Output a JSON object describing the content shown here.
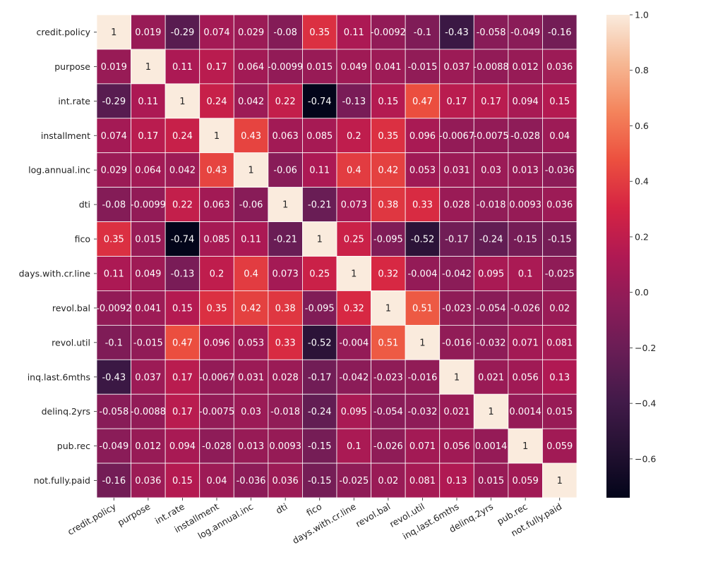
{
  "chart_data": {
    "type": "heatmap",
    "title": "",
    "xlabel": "",
    "ylabel": "",
    "labels": [
      "credit.policy",
      "purpose",
      "int.rate",
      "installment",
      "log.annual.inc",
      "dti",
      "fico",
      "days.with.cr.line",
      "revol.bal",
      "revol.util",
      "inq.last.6mths",
      "delinq.2yrs",
      "pub.rec",
      "not.fully.paid"
    ],
    "values": [
      [
        "1",
        "0.019",
        "-0.29",
        "0.074",
        "0.029",
        "-0.08",
        "0.35",
        "0.11",
        "-0.0092",
        "-0.1",
        "-0.43",
        "-0.058",
        "-0.049",
        "-0.16"
      ],
      [
        "0.019",
        "1",
        "0.11",
        "0.17",
        "0.064",
        "-0.0099",
        "0.015",
        "0.049",
        "0.041",
        "-0.015",
        "0.037",
        "-0.0088",
        "0.012",
        "0.036"
      ],
      [
        "-0.29",
        "0.11",
        "1",
        "0.24",
        "0.042",
        "0.22",
        "-0.74",
        "-0.13",
        "0.15",
        "0.47",
        "0.17",
        "0.17",
        "0.094",
        "0.15"
      ],
      [
        "0.074",
        "0.17",
        "0.24",
        "1",
        "0.43",
        "0.063",
        "0.085",
        "0.2",
        "0.35",
        "0.096",
        "-0.0067",
        "-0.0075",
        "-0.028",
        "0.04"
      ],
      [
        "0.029",
        "0.064",
        "0.042",
        "0.43",
        "1",
        "-0.06",
        "0.11",
        "0.4",
        "0.42",
        "0.053",
        "0.031",
        "0.03",
        "0.013",
        "-0.036"
      ],
      [
        "-0.08",
        "-0.0099",
        "0.22",
        "0.063",
        "-0.06",
        "1",
        "-0.21",
        "0.073",
        "0.38",
        "0.33",
        "0.028",
        "-0.018",
        "0.0093",
        "0.036"
      ],
      [
        "0.35",
        "0.015",
        "-0.74",
        "0.085",
        "0.11",
        "-0.21",
        "1",
        "0.25",
        "-0.095",
        "-0.52",
        "-0.17",
        "-0.24",
        "-0.15",
        "-0.15"
      ],
      [
        "0.11",
        "0.049",
        "-0.13",
        "0.2",
        "0.4",
        "0.073",
        "0.25",
        "1",
        "0.32",
        "-0.004",
        "-0.042",
        "0.095",
        "0.1",
        "-0.025"
      ],
      [
        "-0.0092",
        "0.041",
        "0.15",
        "0.35",
        "0.42",
        "0.38",
        "-0.095",
        "0.32",
        "1",
        "0.51",
        "-0.023",
        "-0.054",
        "-0.026",
        "0.02"
      ],
      [
        "-0.1",
        "-0.015",
        "0.47",
        "0.096",
        "0.053",
        "0.33",
        "-0.52",
        "-0.004",
        "0.51",
        "1",
        "-0.016",
        "-0.032",
        "0.071",
        "0.081"
      ],
      [
        "-0.43",
        "0.037",
        "0.17",
        "-0.0067",
        "0.031",
        "0.028",
        "-0.17",
        "-0.042",
        "-0.023",
        "-0.016",
        "1",
        "0.021",
        "0.056",
        "0.13"
      ],
      [
        "-0.058",
        "-0.0088",
        "0.17",
        "-0.0075",
        "0.03",
        "-0.018",
        "-0.24",
        "0.095",
        "-0.054",
        "-0.032",
        "0.021",
        "1",
        "0.0014",
        "0.015"
      ],
      [
        "-0.049",
        "0.012",
        "0.094",
        "-0.028",
        "0.013",
        "0.0093",
        "-0.15",
        "0.1",
        "-0.026",
        "0.071",
        "0.056",
        "0.0014",
        "1",
        "0.059"
      ],
      [
        "-0.16",
        "0.036",
        "0.15",
        "0.04",
        "-0.036",
        "0.036",
        "-0.15",
        "-0.025",
        "0.02",
        "0.081",
        "0.13",
        "0.015",
        "0.059",
        "1"
      ]
    ],
    "colorbar": {
      "range": [
        -0.74,
        1.0
      ],
      "ticks": [
        "1.0",
        "0.8",
        "0.6",
        "0.4",
        "0.2",
        "0.0",
        "−0.2",
        "−0.4",
        "−0.6"
      ]
    },
    "colormap": "rocket",
    "grid_lines": true,
    "grid_color": "#ffffff",
    "annotated": true
  }
}
